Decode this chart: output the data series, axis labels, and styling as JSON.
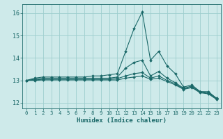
{
  "xlabel": "Humidex (Indice chaleur)",
  "background_color": "#ceeaea",
  "grid_color": "#9ecece",
  "line_color": "#1a6868",
  "xlim": [
    -0.5,
    23.5
  ],
  "ylim": [
    11.75,
    16.4
  ],
  "xticks": [
    0,
    1,
    2,
    3,
    4,
    5,
    6,
    7,
    8,
    9,
    10,
    11,
    12,
    13,
    14,
    15,
    16,
    17,
    18,
    19,
    20,
    21,
    22,
    23
  ],
  "yticks": [
    12,
    13,
    14,
    15,
    16
  ],
  "series": [
    [
      13.0,
      13.1,
      13.15,
      13.15,
      13.15,
      13.15,
      13.15,
      13.15,
      13.2,
      13.2,
      13.25,
      13.3,
      14.3,
      15.3,
      16.05,
      13.9,
      14.3,
      13.65,
      13.3,
      12.7,
      12.8,
      12.5,
      12.5,
      12.2
    ],
    [
      13.0,
      13.05,
      13.1,
      13.1,
      13.1,
      13.1,
      13.1,
      13.1,
      13.1,
      13.1,
      13.1,
      13.15,
      13.55,
      13.8,
      13.9,
      13.2,
      13.4,
      13.1,
      12.9,
      12.65,
      12.75,
      12.5,
      12.45,
      12.2
    ],
    [
      13.0,
      13.02,
      13.05,
      13.05,
      13.05,
      13.05,
      13.05,
      13.05,
      13.05,
      13.05,
      13.05,
      13.08,
      13.2,
      13.3,
      13.35,
      13.1,
      13.2,
      13.0,
      12.85,
      12.62,
      12.7,
      12.48,
      12.42,
      12.18
    ],
    [
      13.0,
      13.0,
      13.02,
      13.02,
      13.02,
      13.02,
      13.02,
      13.02,
      13.02,
      13.02,
      13.02,
      13.02,
      13.1,
      13.15,
      13.2,
      13.05,
      13.1,
      12.95,
      12.8,
      12.6,
      12.68,
      12.45,
      12.4,
      12.15
    ]
  ]
}
